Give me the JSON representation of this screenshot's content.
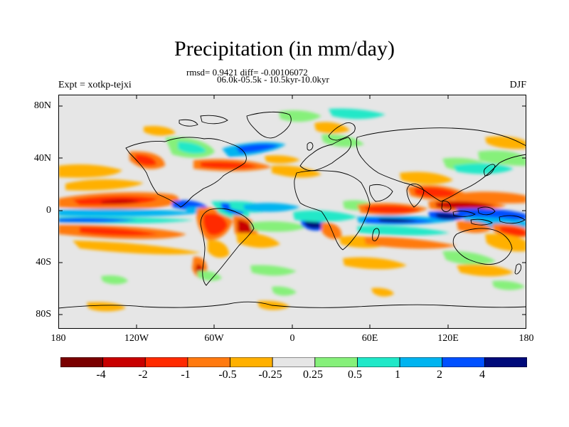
{
  "title": "Precipitation (in mm/day)",
  "stats_text": "rmsd= 0.9421 diff= -0.00106072",
  "period_text": "06.0k-05.5k - 10.5kyr-10.0kyr",
  "experiment_text": "Expt = xotkp-tejxi",
  "season_text": "DJF",
  "latitude_labels": [
    "80N",
    "40N",
    "0",
    "40S",
    "80S"
  ],
  "longitude_labels": [
    "180",
    "120W",
    "60W",
    "0",
    "60E",
    "120E",
    "180"
  ],
  "colorbar": {
    "labels": [
      "-4",
      "-2",
      "-1",
      "-0.5",
      "-0.25",
      "0.25",
      "0.5",
      "1",
      "2",
      "4"
    ],
    "colors": [
      "#7a0000",
      "#c80000",
      "#ff2a00",
      "#ff7a10",
      "#ffb000",
      "#e6e6e6",
      "#86f07a",
      "#20e8c8",
      "#00b4f0",
      "#0050ff",
      "#000a7a"
    ]
  },
  "map_colors": {
    "ocean_land_background": "#e6e6e6",
    "coastline": "#000000"
  }
}
